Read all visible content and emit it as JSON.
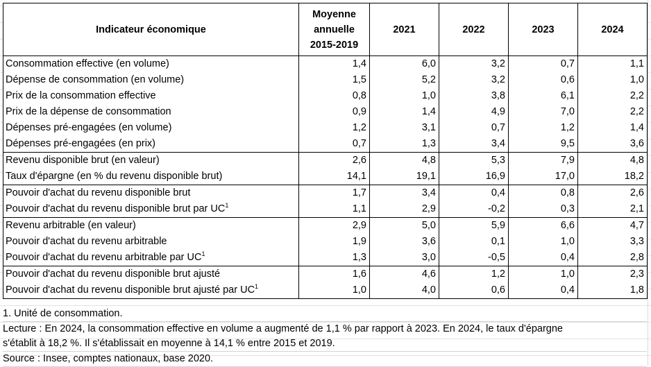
{
  "table": {
    "headers": {
      "indicator": "Indicateur économique",
      "avg_line1": "Moyenne",
      "avg_line2": "annuelle",
      "avg_line3": "2015-2019",
      "y2021": "2021",
      "y2022": "2022",
      "y2023": "2023",
      "y2024": "2024"
    },
    "rows": [
      {
        "label": "Consommation effective (en volume)",
        "sup": "",
        "values": [
          "1,4",
          "6,0",
          "3,2",
          "0,7",
          "1,1"
        ]
      },
      {
        "label": "Dépense de consommation (en volume)",
        "sup": "",
        "values": [
          "1,5",
          "5,2",
          "3,2",
          "0,6",
          "1,0"
        ]
      },
      {
        "label": "Prix de la consommation effective",
        "sup": "",
        "values": [
          "0,8",
          "1,0",
          "3,8",
          "6,1",
          "2,2"
        ]
      },
      {
        "label": "Prix de la dépense de consommation",
        "sup": "",
        "values": [
          "0,9",
          "1,4",
          "4,9",
          "7,0",
          "2,2"
        ]
      },
      {
        "label": "Dépenses pré-engagées (en volume)",
        "sup": "",
        "values": [
          "1,2",
          "3,1",
          "0,7",
          "1,2",
          "1,4"
        ]
      },
      {
        "label": "Dépenses pré-engagées (en prix)",
        "sup": "",
        "values": [
          "0,7",
          "1,3",
          "3,4",
          "9,5",
          "3,6"
        ]
      },
      {
        "label": "Revenu disponible brut (en valeur)",
        "sup": "",
        "values": [
          "2,6",
          "4,8",
          "5,3",
          "7,9",
          "4,8"
        ]
      },
      {
        "label": "Taux d'épargne (en % du revenu disponible brut)",
        "sup": "",
        "values": [
          "14,1",
          "19,1",
          "16,9",
          "17,0",
          "18,2"
        ]
      },
      {
        "label": "Pouvoir d'achat du revenu disponible brut",
        "sup": "",
        "values": [
          "1,7",
          "3,4",
          "0,4",
          "0,8",
          "2,6"
        ]
      },
      {
        "label": "Pouvoir d'achat du revenu disponible brut par UC",
        "sup": "1",
        "values": [
          "1,1",
          "2,9",
          "-0,2",
          "0,3",
          "2,1"
        ]
      },
      {
        "label": "Revenu arbitrable (en valeur)",
        "sup": "",
        "values": [
          "2,9",
          "5,0",
          "5,9",
          "6,6",
          "4,7"
        ]
      },
      {
        "label": "Pouvoir d'achat du revenu arbitrable",
        "sup": "",
        "values": [
          "1,9",
          "3,6",
          "0,1",
          "1,0",
          "3,3"
        ]
      },
      {
        "label": "Pouvoir d'achat du revenu arbitrable par UC",
        "sup": "1",
        "values": [
          "1,3",
          "3,0",
          "-0,5",
          "0,4",
          "2,8"
        ]
      },
      {
        "label": "Pouvoir d'achat du revenu disponible brut ajusté",
        "sup": "",
        "values": [
          "1,6",
          "4,6",
          "1,2",
          "1,0",
          "2,3"
        ]
      },
      {
        "label": "Pouvoir d'achat du revenu disponible brut ajusté par UC",
        "sup": "1",
        "values": [
          "1,0",
          "4,0",
          "0,6",
          "0,4",
          "1,8"
        ]
      }
    ]
  },
  "notes": {
    "footnote": "1. Unité de consommation.",
    "lecture_line1": "Lecture : En 2024, la consommation effective en volume a augmenté de 1,1 % par rapport à 2023. En 2024, le taux d'épargne",
    "lecture_line2": "s'établit à 18,2 %. Il s'établissait en moyenne à 14,1 % entre 2015 et 2019.",
    "source": "Source : Insee, comptes nationaux, base 2020."
  }
}
